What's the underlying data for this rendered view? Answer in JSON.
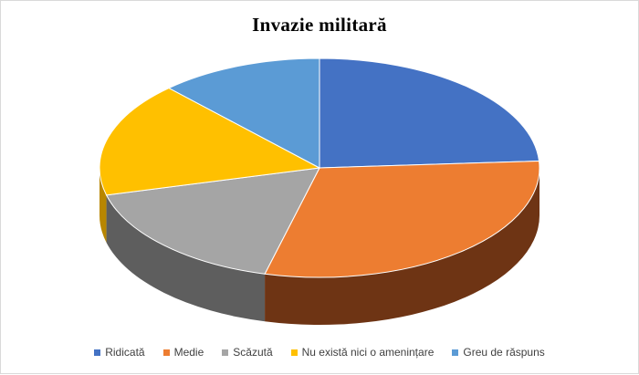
{
  "chart_data": {
    "type": "pie",
    "title": "Invazie militară",
    "style": "3d",
    "legend_position": "bottom",
    "slices": [
      {
        "label": "Ridicată",
        "value": 24,
        "color": "#4472C4",
        "side_color": "#2E4E8A"
      },
      {
        "label": "Medie",
        "value": 30,
        "color": "#ED7D31",
        "side_color": "#6E3414"
      },
      {
        "label": "Scăzută",
        "value": 17,
        "color": "#A5A5A5",
        "side_color": "#5E5E5E"
      },
      {
        "label": "Nu există nici o amenințare",
        "value": 17,
        "color": "#FFC000",
        "side_color": "#B88600"
      },
      {
        "label": "Greu de răspuns",
        "value": 12,
        "color": "#5B9BD5",
        "side_color": "#3A6C9C"
      }
    ]
  }
}
